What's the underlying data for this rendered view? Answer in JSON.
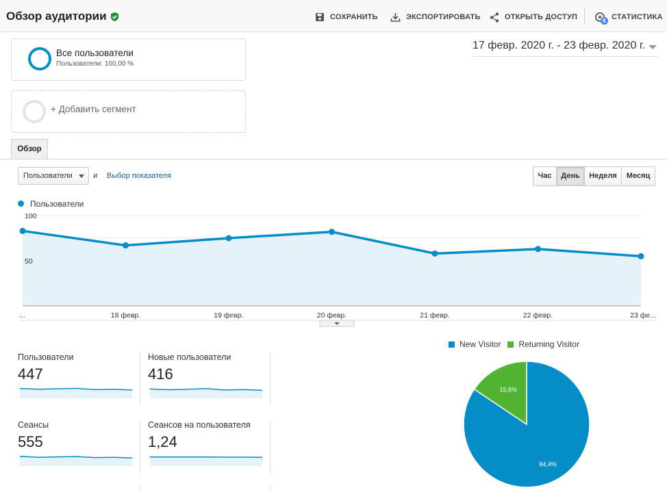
{
  "header": {
    "title": "Обзор аудитории",
    "toolbar": {
      "save": "СОХРАНИТЬ",
      "export": "ЭКСПОРТИРОВАТЬ",
      "share": "ОТКРЫТЬ ДОСТУП",
      "stats": "СТАТИСТИКА",
      "stats_badge": "6"
    }
  },
  "segments": {
    "active": {
      "title": "Все пользователи",
      "subtitle": "Пользователи: 100,00 %"
    },
    "add": "+ Добавить сегмент"
  },
  "date_range": "17 февр. 2020 г. - 23 февр. 2020 г.",
  "tabs": [
    "Обзор"
  ],
  "controls": {
    "metric": "Пользователи",
    "and": "и",
    "choose_metric": "Выбор показателя",
    "periods": [
      "Час",
      "День",
      "Неделя",
      "Месяц"
    ],
    "active_period": "День"
  },
  "chart_data": {
    "type": "area",
    "legend": [
      "Пользователи"
    ],
    "series": [
      {
        "name": "Пользователи",
        "color": "#058dc7",
        "values": [
          83,
          67,
          75,
          82,
          58,
          63,
          55
        ]
      }
    ],
    "x_tick_labels": [
      "...",
      "18 февр.",
      "19 февр.",
      "20 февр.",
      "21 февр.",
      "22 февр.",
      "23 фе..."
    ],
    "y_tick_labels": [
      "100",
      "50"
    ],
    "ylim": [
      0,
      100
    ],
    "grid": true
  },
  "metrics": [
    {
      "label": "Пользователи",
      "value": "447",
      "spark": [
        65,
        60,
        63,
        66,
        58,
        60,
        55
      ]
    },
    {
      "label": "Новые пользователи",
      "value": "416",
      "spark": [
        62,
        57,
        60,
        64,
        55,
        58,
        53
      ]
    },
    {
      "label": "Сеансы",
      "value": "555",
      "spark": [
        65,
        58,
        61,
        63,
        56,
        58,
        54
      ]
    },
    {
      "label": "Сеансов на пользователя",
      "value": "1,24",
      "spark": [
        60,
        60,
        60,
        60,
        59,
        59,
        58
      ]
    }
  ],
  "pie": {
    "legend": [
      {
        "label": "New Visitor",
        "color": "#058dc7"
      },
      {
        "label": "Returning Visitor",
        "color": "#50b432"
      }
    ],
    "slices": [
      {
        "label": "New Visitor",
        "value": 84.4,
        "text": "84,4%"
      },
      {
        "label": "Returning Visitor",
        "value": 15.6,
        "text": "15,6%"
      }
    ]
  }
}
